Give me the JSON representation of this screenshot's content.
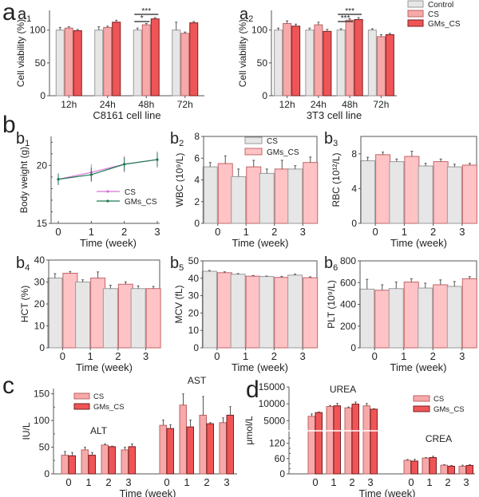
{
  "colors": {
    "control": "#e6e6e6",
    "control_edge": "#9a9a9a",
    "cs": "#f7a9aa",
    "cs_edge": "#b96466",
    "gms": "#ef5556",
    "gms_edge": "#7a1e20",
    "cs_b": "#ffc3c5",
    "cs_b_edge": "#c26467",
    "line_cs": "#d774d2",
    "line_gms": "#1f7a55"
  },
  "panel_labels": {
    "a": "a",
    "b": "b",
    "c": "c",
    "d": "d"
  },
  "chart_data": [
    {
      "id": "a1",
      "type": "bar",
      "label": "a",
      "sub": "1",
      "categories": [
        "12h",
        "24h",
        "48h",
        "72h"
      ],
      "xlabel": "C8161 cell line",
      "ylabel": "Cell viability (%)",
      "ylim": [
        0,
        130
      ],
      "yticks": [
        0,
        50,
        100
      ],
      "series": [
        {
          "name": "Control",
          "values": [
            100,
            100,
            100,
            100
          ],
          "errors": [
            4,
            5,
            3,
            12
          ]
        },
        {
          "name": "CS",
          "values": [
            103,
            104,
            108,
            95
          ],
          "errors": [
            2,
            2,
            2,
            2
          ]
        },
        {
          "name": "GMs_CS",
          "values": [
            99,
            112,
            117,
            111
          ],
          "errors": [
            2,
            3,
            2,
            2
          ]
        }
      ],
      "annotations": [
        {
          "text": "*",
          "group": "48h",
          "from": 0,
          "to": 1
        },
        {
          "text": "***",
          "group": "48h",
          "from": 0,
          "to": 2
        }
      ]
    },
    {
      "id": "a2",
      "type": "bar",
      "label": "a",
      "sub": "2",
      "categories": [
        "12h",
        "24h",
        "48h",
        "72h"
      ],
      "xlabel": "3T3 cell line",
      "ylabel": "Cell viability (%)",
      "ylim": [
        0,
        130
      ],
      "yticks": [
        0,
        50,
        100
      ],
      "series": [
        {
          "name": "Control",
          "values": [
            100,
            100,
            100,
            100
          ],
          "errors": [
            3,
            3,
            2,
            2
          ]
        },
        {
          "name": "CS",
          "values": [
            110,
            108,
            115,
            90
          ],
          "errors": [
            4,
            4,
            2,
            3
          ]
        },
        {
          "name": "GMs_CS",
          "values": [
            106,
            98,
            116,
            93
          ],
          "errors": [
            3,
            3,
            3,
            2
          ]
        }
      ],
      "annotations": [
        {
          "text": "***",
          "group": "48h",
          "from": 0,
          "to": 1
        },
        {
          "text": "***",
          "group": "48h",
          "from": 0,
          "to": 2
        }
      ],
      "legend": [
        "Control",
        "CS",
        "GMs_CS"
      ]
    },
    {
      "id": "b1",
      "type": "line",
      "label": "",
      "sub": "1",
      "x": [
        0,
        1,
        2,
        3
      ],
      "xlabel": "Time (week)",
      "ylabel": "Body weight (g)",
      "ylim": [
        15,
        22.5
      ],
      "yticks": [
        15,
        20
      ],
      "series": [
        {
          "name": "CS",
          "values": [
            18.8,
            19.4,
            20.1,
            20.5
          ],
          "errors": [
            0.5,
            0.7,
            0.7,
            0.7
          ]
        },
        {
          "name": "GMs_CS",
          "values": [
            18.8,
            19.2,
            20.1,
            20.5
          ],
          "errors": [
            0.5,
            0.6,
            0.6,
            0.6
          ]
        }
      ],
      "legend": [
        "CS",
        "GMs_CS"
      ]
    },
    {
      "id": "b2",
      "type": "bar",
      "label": "",
      "sub": "2",
      "categories": [
        "0",
        "1",
        "2",
        "3"
      ],
      "xlabel": "Time (week)",
      "ylabel": "WBC (10⁹/L)",
      "ylim": [
        0,
        8
      ],
      "yticks": [
        0,
        2,
        4,
        6,
        8
      ],
      "series": [
        {
          "name": "CS",
          "values": [
            5.2,
            4.3,
            4.6,
            5.0
          ],
          "errors": [
            0.4,
            0.7,
            0.4,
            0.3
          ]
        },
        {
          "name": "GMs_CS",
          "values": [
            5.5,
            5.2,
            5.0,
            5.6
          ],
          "errors": [
            0.7,
            0.6,
            0.8,
            0.5
          ]
        }
      ],
      "legend": [
        "CS",
        "GMs_CS"
      ]
    },
    {
      "id": "b3",
      "type": "bar",
      "label": "",
      "sub": "3",
      "categories": [
        "0",
        "1",
        "2",
        "3"
      ],
      "xlabel": "Time (week)",
      "ylabel": "RBC (10¹²/L)",
      "ylim": [
        0,
        10
      ],
      "yticks": [
        0,
        4,
        8
      ],
      "series": [
        {
          "name": "CS",
          "values": [
            7.2,
            7.1,
            6.6,
            6.5
          ],
          "errors": [
            0.4,
            0.3,
            0.3,
            0.3
          ]
        },
        {
          "name": "GMs_CS",
          "values": [
            7.9,
            7.7,
            7.1,
            6.7
          ],
          "errors": [
            0.3,
            0.6,
            0.3,
            0.2
          ]
        }
      ]
    },
    {
      "id": "b4",
      "type": "bar",
      "label": "",
      "sub": "4",
      "categories": [
        "0",
        "1",
        "2",
        "3"
      ],
      "xlabel": "Time (week)",
      "ylabel": "HCT (%)",
      "ylim": [
        0,
        40
      ],
      "yticks": [
        0,
        10,
        20,
        30,
        40
      ],
      "series": [
        {
          "name": "CS",
          "values": [
            31.8,
            30.0,
            27.0,
            27.0
          ],
          "errors": [
            2.0,
            1.0,
            1.5,
            1.2
          ]
        },
        {
          "name": "GMs_CS",
          "values": [
            34.0,
            31.8,
            29.0,
            27.0
          ],
          "errors": [
            0.8,
            2.8,
            1.0,
            1.0
          ]
        }
      ]
    },
    {
      "id": "b5",
      "type": "bar",
      "label": "",
      "sub": "5",
      "categories": [
        "0",
        "1",
        "2",
        "3"
      ],
      "xlabel": "Time (week)",
      "ylabel": "MCV (fL)",
      "ylim": [
        0,
        50
      ],
      "yticks": [
        0,
        10,
        20,
        30,
        40,
        50
      ],
      "series": [
        {
          "name": "CS",
          "values": [
            44.0,
            42.3,
            41.0,
            41.8
          ],
          "errors": [
            0.5,
            0.4,
            0.3,
            0.6
          ]
        },
        {
          "name": "GMs_CS",
          "values": [
            43.2,
            41.2,
            40.5,
            40.3
          ],
          "errors": [
            0.5,
            0.4,
            0.6,
            0.5
          ]
        }
      ]
    },
    {
      "id": "b6",
      "type": "bar",
      "label": "",
      "sub": "6",
      "categories": [
        "0",
        "1",
        "2",
        "3"
      ],
      "xlabel": "Time (week)",
      "ylabel": "PLT (10⁹/L)",
      "ylim": [
        0,
        800
      ],
      "yticks": [
        0,
        200,
        400,
        600,
        800
      ],
      "series": [
        {
          "name": "CS",
          "values": [
            540,
            545,
            550,
            565
          ],
          "errors": [
            90,
            60,
            45,
            45
          ]
        },
        {
          "name": "GMs_CS",
          "values": [
            530,
            605,
            580,
            635
          ],
          "errors": [
            50,
            30,
            45,
            20
          ]
        }
      ]
    },
    {
      "id": "c",
      "type": "bar",
      "label": "c",
      "sub": "",
      "groups": [
        {
          "title": "ALT",
          "categories": [
            "0",
            "1",
            "2",
            "3"
          ],
          "series": [
            {
              "name": "CS",
              "values": [
                35,
                45,
                54,
                45
              ],
              "errors": [
                7,
                5,
                2,
                5
              ]
            },
            {
              "name": "GMs_CS",
              "values": [
                34,
                35,
                51,
                51
              ],
              "errors": [
                6,
                5,
                1,
                5
              ]
            }
          ]
        },
        {
          "title": "AST",
          "categories": [
            "0",
            "1",
            "2",
            "3"
          ],
          "series": [
            {
              "name": "CS",
              "values": [
                91,
                129,
                110,
                96
              ],
              "errors": [
                10,
                21,
                35,
                9
              ]
            },
            {
              "name": "GMs_CS",
              "values": [
                85,
                88,
                94,
                110
              ],
              "errors": [
                7,
                13,
                2,
                16
              ]
            }
          ]
        }
      ],
      "xlabel": "Time (week)",
      "ylabel": "IU/L",
      "ylim": [
        0,
        160
      ],
      "yticks": [
        0,
        50,
        100,
        150
      ],
      "legend": [
        "CS",
        "GMs_CS"
      ]
    },
    {
      "id": "d",
      "type": "bar",
      "label": "d",
      "sub": "",
      "broken_axis": true,
      "groups": [
        {
          "title": "UREA",
          "categories": [
            "0",
            "1",
            "2",
            "3"
          ],
          "series": [
            {
              "name": "CS",
              "values": [
                6300,
                9200,
                8800,
                9400
              ],
              "errors": [
                700,
                300,
                250,
                700
              ]
            },
            {
              "name": "GMs_CS",
              "values": [
                7400,
                9400,
                9900,
                8400
              ],
              "errors": [
                200,
                700,
                600,
                150
              ]
            }
          ]
        },
        {
          "title": "CREA",
          "categories": [
            "0",
            "1",
            "2",
            "3"
          ],
          "series": [
            {
              "name": "CS",
              "values": [
                53,
                62,
                34,
                30
              ],
              "errors": [
                3,
                2,
                2,
                4
              ]
            },
            {
              "name": "GMs_CS",
              "values": [
                50,
                64,
                30,
                33
              ],
              "errors": [
                7,
                5,
                3,
                3
              ]
            }
          ]
        }
      ],
      "xlabel": "Time (week)",
      "ylabel": "μmol/L",
      "yticks_low": [
        0,
        60,
        120
      ],
      "ylim_low": [
        0,
        150
      ],
      "yticks_high": [
        5000,
        10000,
        15000
      ],
      "ylim_high": [
        2000,
        15000
      ],
      "legend": [
        "CS",
        "GMs_CS"
      ]
    }
  ]
}
